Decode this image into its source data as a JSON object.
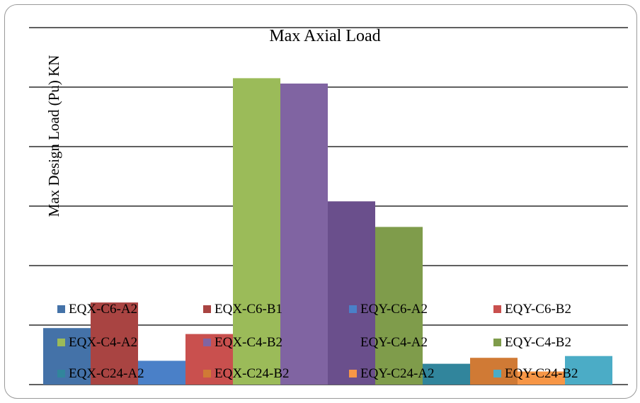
{
  "chart_data": {
    "type": "bar",
    "title": "Max Axial Load",
    "xlabel": "",
    "ylabel": "Max Design Load (Pu) KN",
    "ylim": [
      0,
      6
    ],
    "y_ticks_labeled": false,
    "grid": true,
    "legend_placement": "bottom-overlay",
    "series": [
      {
        "name": "EQX-C6-A2",
        "value": 0.95,
        "color": "#4472a8"
      },
      {
        "name": "EQX-C6-B1",
        "value": 1.38,
        "color": "#a94442"
      },
      {
        "name": "EQY-C6-A2",
        "value": 0.4,
        "color": "#4a80c8"
      },
      {
        "name": "EQY-C6-B2",
        "value": 0.85,
        "color": "#c9504e"
      },
      {
        "name": "EQX-C4-A2",
        "value": 5.15,
        "color": "#9bbb59"
      },
      {
        "name": "EQX-C4-B2",
        "value": 5.06,
        "color": "#8064a2"
      },
      {
        "name": "EQY-C4-A2",
        "value": 3.08,
        "color": "#6a4f8c"
      },
      {
        "name": "EQY-C4-B2",
        "value": 2.65,
        "color": "#7f9c4b"
      },
      {
        "name": "EQX-C24-A2",
        "value": 0.35,
        "color": "#31859c"
      },
      {
        "name": "EQX-C24-B2",
        "value": 0.45,
        "color": "#d07a35"
      },
      {
        "name": "EQY-C24-A2",
        "value": 0.22,
        "color": "#f79646"
      },
      {
        "name": "EQY-C24-B2",
        "value": 0.48,
        "color": "#4bacc6"
      }
    ]
  }
}
